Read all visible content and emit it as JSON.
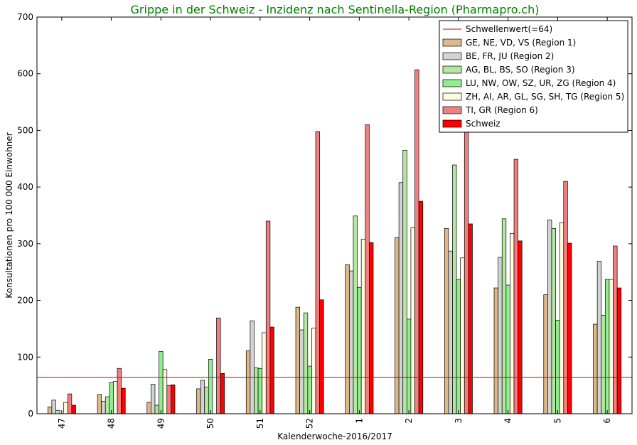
{
  "chart_data": {
    "type": "bar",
    "title": "Grippe in der Schweiz - Inzidenz nach Sentinella-Region (Pharmapro.ch)",
    "title_color": "#008000",
    "xlabel": "Kalenderwoche-2016/2017",
    "ylabel": "Konsultationen pro 100 000 Einwohner",
    "ylim": [
      0,
      700
    ],
    "yticks": [
      0,
      100,
      200,
      300,
      400,
      500,
      600,
      700
    ],
    "grid": false,
    "legend_position": "top-right",
    "categories": [
      "47",
      "48",
      "49",
      "50",
      "51",
      "52",
      "1",
      "2",
      "3",
      "4",
      "5",
      "6"
    ],
    "threshold": {
      "name": "Schwellenwert(=64)",
      "value": 64,
      "color": "#cc0000"
    },
    "series": [
      {
        "name": "GE, NE, VD, VS (Region 1)",
        "color": "#deb887",
        "values": [
          12,
          34,
          20,
          44,
          111,
          188,
          263,
          311,
          327,
          222,
          210,
          158
        ]
      },
      {
        "name": "BE, FR, JU (Region 2)",
        "color": "#d3d3d3",
        "values": [
          24,
          22,
          52,
          59,
          164,
          148,
          252,
          408,
          287,
          276,
          342,
          269
        ]
      },
      {
        "name": "AG, BL, BS, SO (Region 3)",
        "color": "#b5e6a2",
        "values": [
          6,
          30,
          15,
          47,
          81,
          178,
          349,
          465,
          439,
          344,
          327,
          174
        ]
      },
      {
        "name": "LU, NW, OW, SZ, UR, ZG (Region 4)",
        "color": "#90ee90",
        "values": [
          0,
          55,
          110,
          96,
          80,
          84,
          223,
          167,
          237,
          227,
          165,
          237
        ]
      },
      {
        "name": "ZH, AI, AR, GL, SG, SH, TG (Region 5)",
        "color": "#fffde0",
        "values": [
          20,
          57,
          78,
          0,
          143,
          151,
          308,
          328,
          275,
          318,
          337,
          237
        ]
      },
      {
        "name": "TI, GR (Region 6)",
        "color": "#f08080",
        "values": [
          35,
          80,
          50,
          169,
          340,
          498,
          510,
          607,
          500,
          449,
          410,
          296
        ]
      },
      {
        "name": "Schweiz",
        "color": "#ff0000",
        "values": [
          15,
          45,
          51,
          71,
          153,
          201,
          302,
          375,
          335,
          305,
          301,
          222
        ]
      }
    ]
  }
}
